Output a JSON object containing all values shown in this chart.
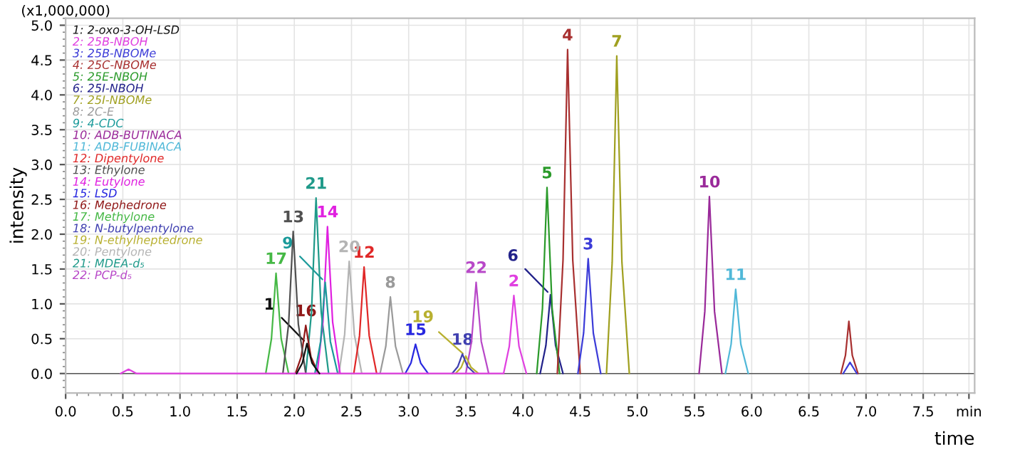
{
  "chart_data": {
    "type": "line",
    "xlabel": "time",
    "ylabel": "intensity",
    "xlim": [
      0,
      7.95
    ],
    "ylim": [
      -0.28,
      5.1
    ],
    "xticks": [
      {
        "value": 0,
        "label": "0.0"
      },
      0.5,
      {
        "value": 1,
        "label": "1.0"
      },
      1.5,
      {
        "value": 2,
        "label": "2.0"
      },
      2.5,
      {
        "value": 3,
        "label": "3.0"
      },
      3.5,
      {
        "value": 4,
        "label": "4.0"
      },
      4.5,
      {
        "value": 5,
        "label": "5.0"
      },
      5.5,
      {
        "value": 6,
        "label": "6.0"
      },
      6.5,
      {
        "value": 7,
        "label": "7.0"
      },
      7.5,
      {
        "value": 7.9,
        "label": "min"
      }
    ],
    "yticks": [
      {
        "value": 0,
        "label": "0.0"
      },
      0.5,
      {
        "value": 1,
        "label": "1.0"
      },
      1.5,
      {
        "value": 2,
        "label": "2.0"
      },
      2.5,
      {
        "value": 3,
        "label": "3.0"
      },
      3.5,
      {
        "value": 4,
        "label": "4.0"
      },
      4.5,
      {
        "value": 5,
        "label": "5.0"
      }
    ],
    "grid": true,
    "legend": "top left",
    "marker": "none",
    "line_style": "solid",
    "series": [
      {
        "name": "1: 2-oxo-3-OH-LSD",
        "color": "#111111",
        "x": [
          2.02,
          2.07,
          2.11,
          2.155,
          2.22
        ],
        "values": [
          0,
          0.15,
          0.43,
          0.15,
          0
        ]
      },
      {
        "name": "2: 25B-NBOH",
        "color": "#e040e0",
        "x": [
          0.48,
          0.55,
          0.62,
          3.83,
          3.88,
          3.92,
          3.965,
          4.03
        ],
        "values": [
          0,
          0.06,
          0,
          0,
          0.39,
          1.12,
          0.39,
          0
        ]
      },
      {
        "name": "3: 25B-NBOMe",
        "color": "#3c3cd8",
        "x": [
          4.48,
          4.53,
          4.57,
          4.615,
          4.68,
          5.5,
          6.8,
          6.86,
          6.92
        ],
        "values": [
          0,
          0.58,
          1.65,
          0.58,
          0,
          null,
          0,
          0.16,
          0
        ]
      },
      {
        "name": "4: 25C-NBOMe",
        "color": "#a83030",
        "x": [
          4.3,
          4.35,
          4.39,
          4.435,
          4.5,
          5.5,
          6.78,
          6.82,
          6.85,
          6.88,
          6.93
        ],
        "values": [
          0,
          1.63,
          4.65,
          1.63,
          0,
          null,
          0,
          0.26,
          0.75,
          0.26,
          0
        ]
      },
      {
        "name": "5: 25E-NBOH",
        "color": "#2a9a2a",
        "x": [
          4.12,
          4.17,
          4.21,
          4.255,
          4.32
        ],
        "values": [
          0,
          0.93,
          2.67,
          0.93,
          0
        ]
      },
      {
        "name": "6: 25I-NBOH",
        "color": "#22228a",
        "x": [
          4.15,
          4.2,
          4.24,
          4.285,
          4.35
        ],
        "values": [
          0,
          0.4,
          1.13,
          0.4,
          0
        ]
      },
      {
        "name": "7: 25I-NBOMe",
        "color": "#a0a020",
        "x": [
          4.73,
          4.78,
          4.82,
          4.865,
          4.93
        ],
        "values": [
          0,
          1.6,
          4.56,
          1.6,
          0
        ]
      },
      {
        "name": "8: 2C-E",
        "color": "#9a9a9a",
        "x": [
          2.75,
          2.8,
          2.84,
          2.885,
          2.95
        ],
        "values": [
          0,
          0.39,
          1.1,
          0.39,
          0
        ]
      },
      {
        "name": "9: 4-CDC",
        "color": "#1a9a9a",
        "x": [
          2.18,
          2.23,
          2.27,
          2.315,
          2.38
        ],
        "values": [
          0,
          0.46,
          1.31,
          0.46,
          0
        ]
      },
      {
        "name": "10: ADB-BUTINACA",
        "color": "#9a2a9a",
        "x": [
          5.54,
          5.59,
          5.63,
          5.675,
          5.74
        ],
        "values": [
          0,
          0.89,
          2.54,
          0.89,
          0
        ]
      },
      {
        "name": "11: ADB-FUBINACA",
        "color": "#50b8d8",
        "x": [
          5.77,
          5.82,
          5.86,
          5.905,
          5.97
        ],
        "values": [
          0,
          0.42,
          1.21,
          0.42,
          0
        ]
      },
      {
        "name": "12: Dipentylone",
        "color": "#e02828",
        "x": [
          2.52,
          2.57,
          2.61,
          2.655,
          2.72
        ],
        "values": [
          0,
          0.54,
          1.53,
          0.54,
          0
        ]
      },
      {
        "name": "13: Ethylone",
        "color": "#505050",
        "x": [
          1.9,
          1.95,
          1.99,
          2.035,
          2.1
        ],
        "values": [
          0,
          0.71,
          2.04,
          0.71,
          0
        ]
      },
      {
        "name": "14: Eutylone",
        "color": "#e020e0",
        "x": [
          2.2,
          2.25,
          2.29,
          2.335,
          2.4
        ],
        "values": [
          0,
          0.74,
          2.11,
          0.74,
          0
        ]
      },
      {
        "name": "15: LSD",
        "color": "#2828e0",
        "x": [
          2.97,
          3.02,
          3.06,
          3.105,
          3.17
        ],
        "values": [
          0,
          0.15,
          0.42,
          0.15,
          0
        ]
      },
      {
        "name": "16: Mephedrone",
        "color": "#901818",
        "x": [
          2.01,
          2.06,
          2.1,
          2.145,
          2.21
        ],
        "values": [
          0,
          0.24,
          0.69,
          0.24,
          0
        ]
      },
      {
        "name": "17: Methylone",
        "color": "#45b845",
        "x": [
          1.75,
          1.8,
          1.84,
          1.885,
          1.95
        ],
        "values": [
          0,
          0.5,
          1.44,
          0.5,
          0
        ]
      },
      {
        "name": "18: N-butylpentylone",
        "color": "#4040b0",
        "x": [
          3.38,
          3.43,
          3.47,
          3.515,
          3.58
        ],
        "values": [
          0,
          0.1,
          0.28,
          0.1,
          0
        ]
      },
      {
        "name": "19: N-ethylheptedrone",
        "color": "#b8b030",
        "x": [
          3.41,
          3.46,
          3.5,
          3.545,
          3.61
        ],
        "values": [
          0,
          0.09,
          0.25,
          0.09,
          0
        ]
      },
      {
        "name": "20: Pentylone",
        "color": "#b4b4b4",
        "x": [
          2.39,
          2.44,
          2.48,
          2.525,
          2.59
        ],
        "values": [
          0,
          0.56,
          1.61,
          0.56,
          0
        ]
      },
      {
        "name": "21: MDEA-d₅",
        "color": "#209a8a",
        "x": [
          2.1,
          2.15,
          2.19,
          2.235,
          2.3
        ],
        "values": [
          0,
          0.88,
          2.52,
          0.88,
          0
        ]
      },
      {
        "name": "22: PCP-d₅",
        "color": "#b848c8",
        "x": [
          3.5,
          3.55,
          3.59,
          3.635,
          3.7
        ],
        "values": [
          0,
          0.46,
          1.31,
          0.46,
          0
        ]
      }
    ],
    "annotations": [
      "(x1,000,000)",
      {
        "text": "1",
        "x": 2.11,
        "y": 0.43
      },
      {
        "text": "2",
        "x": 3.92,
        "y": 1.12
      },
      {
        "text": "3",
        "x": 4.57,
        "y": 1.65
      },
      {
        "text": "4",
        "x": 4.39,
        "y": 4.65
      },
      {
        "text": "5",
        "x": 4.21,
        "y": 2.67
      },
      {
        "text": "6",
        "x": 4.24,
        "y": 1.13
      },
      {
        "text": "7",
        "x": 4.82,
        "y": 4.56
      },
      {
        "text": "8",
        "x": 2.84,
        "y": 1.1
      },
      {
        "text": "9",
        "x": 2.27,
        "y": 1.31
      },
      {
        "text": "10",
        "x": 5.63,
        "y": 2.54
      },
      {
        "text": "11",
        "x": 5.86,
        "y": 1.21
      },
      {
        "text": "12",
        "x": 2.61,
        "y": 1.53
      },
      {
        "text": "13",
        "x": 1.99,
        "y": 2.04
      },
      {
        "text": "14",
        "x": 2.29,
        "y": 2.11
      },
      {
        "text": "15",
        "x": 3.06,
        "y": 0.42
      },
      {
        "text": "16",
        "x": 2.1,
        "y": 0.69
      },
      {
        "text": "17",
        "x": 1.84,
        "y": 1.44
      },
      {
        "text": "18",
        "x": 3.47,
        "y": 0.28
      },
      {
        "text": "19",
        "x": 3.5,
        "y": 0.25
      },
      {
        "text": "20",
        "x": 2.48,
        "y": 1.61
      },
      {
        "text": "21",
        "x": 2.19,
        "y": 2.52
      },
      {
        "text": "22",
        "x": 3.59,
        "y": 1.31
      }
    ]
  }
}
